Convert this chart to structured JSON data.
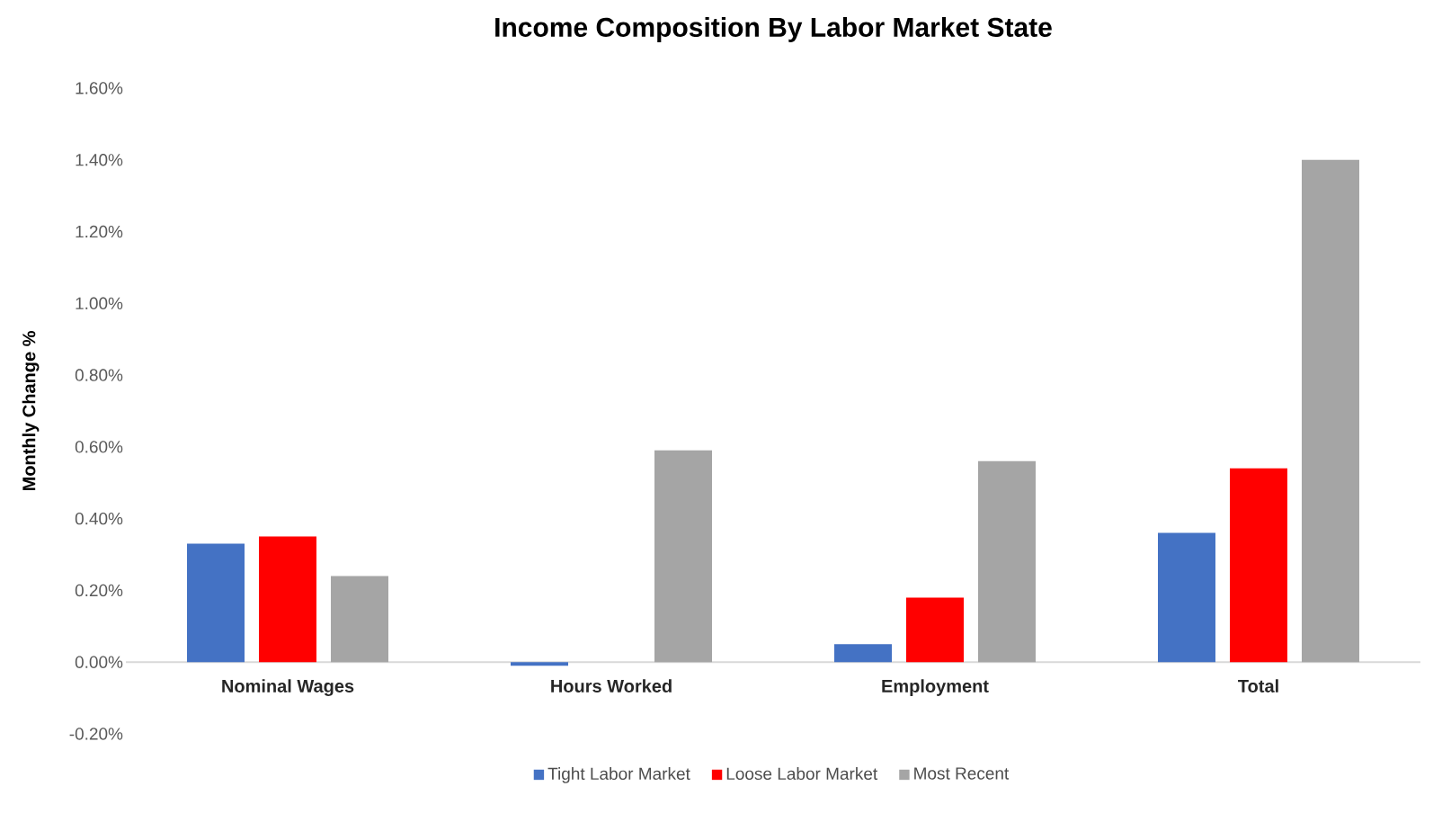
{
  "chart_data": {
    "type": "bar",
    "title": "Income Composition By Labor Market State",
    "ylabel": "Monthly Change %",
    "categories": [
      "Nominal Wages",
      "Hours Worked",
      "Employment",
      "Total"
    ],
    "series": [
      {
        "name": "Tight Labor Market",
        "color": "#4472c4",
        "values": [
          0.33,
          -0.01,
          0.05,
          0.36
        ]
      },
      {
        "name": "Loose Labor Market",
        "color": "#ff0000",
        "values": [
          0.35,
          0.0,
          0.18,
          0.54
        ]
      },
      {
        "name": "Most Recent",
        "color": "#a5a5a5",
        "values": [
          0.24,
          0.59,
          0.56,
          1.4
        ]
      }
    ],
    "ylim": [
      -0.2,
      1.6
    ],
    "yticks": [
      {
        "value": -0.2,
        "label": "-0.20%"
      },
      {
        "value": 0,
        "label": "0.00%"
      },
      {
        "value": 0.2,
        "label": "0.20%"
      },
      {
        "value": 0.4,
        "label": "0.40%"
      },
      {
        "value": 0.6,
        "label": "0.60%"
      },
      {
        "value": 0.8,
        "label": "0.80%"
      },
      {
        "value": 1.0,
        "label": "1.00%"
      },
      {
        "value": 1.2,
        "label": "1.20%"
      },
      {
        "value": 1.4,
        "label": "1.40%"
      },
      {
        "value": 1.6,
        "label": "1.60%"
      }
    ],
    "legend": "bottom"
  }
}
